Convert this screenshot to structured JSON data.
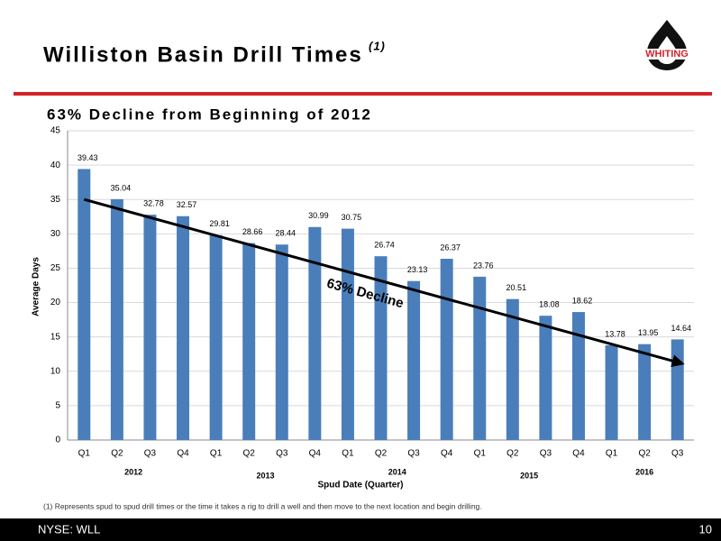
{
  "header": {
    "title": "Williston Basin Drill Times",
    "title_note": "(1)",
    "logo": "WHITING"
  },
  "chart_data": {
    "type": "bar",
    "title": "63% Decline from Beginning of 2012",
    "categories": [
      "Q1",
      "Q2",
      "Q3",
      "Q4",
      "Q1",
      "Q2",
      "Q3",
      "Q4",
      "Q1",
      "Q2",
      "Q3",
      "Q4",
      "Q1",
      "Q2",
      "Q3",
      "Q4",
      "Q1",
      "Q2",
      "Q3"
    ],
    "year_labels": [
      "2012",
      "2013",
      "2014",
      "2015",
      "2016"
    ],
    "values": [
      39.43,
      35.04,
      32.78,
      32.57,
      29.81,
      28.66,
      28.44,
      30.99,
      30.75,
      26.74,
      23.13,
      26.37,
      23.76,
      20.51,
      18.08,
      18.62,
      13.78,
      13.95,
      14.64
    ],
    "color": "#4a7ebb",
    "ylim": [
      0,
      45
    ],
    "yticks": [
      0,
      5,
      10,
      15,
      20,
      25,
      30,
      35,
      40,
      45
    ],
    "grid": true,
    "x_label": "Spud Date (Quarter)",
    "y_label": "Average Days",
    "annotation": "63% Decline"
  },
  "footnote": "(1) Represents spud to spud drill times or the time it takes a rig to drill a well and then move to the next location and begin drilling.",
  "footer": {
    "ticker": "NYSE: WLL",
    "page": "10"
  }
}
